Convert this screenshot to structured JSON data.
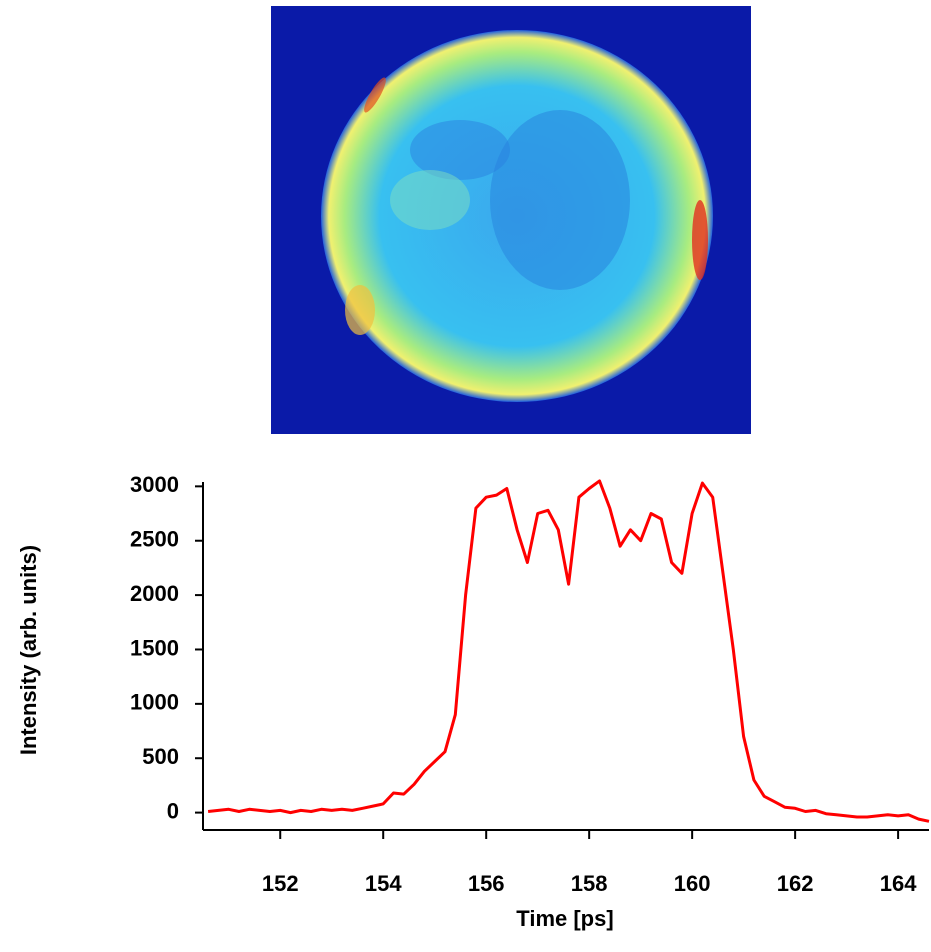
{
  "chart_data": {
    "type": "line",
    "xlabel": "Time [ps]",
    "ylabel": "Intensity (arb. units)",
    "xlim": [
      150.5,
      164.6
    ],
    "ylim": [
      -160,
      3040
    ],
    "xticks": [
      152,
      154,
      156,
      158,
      160,
      162,
      164
    ],
    "yticks": [
      0,
      500,
      1000,
      1500,
      2000,
      2500,
      3000
    ],
    "color": "#ff0000",
    "x": [
      150.6,
      150.8,
      151.0,
      151.2,
      151.4,
      151.6,
      151.8,
      152.0,
      152.2,
      152.4,
      152.6,
      152.8,
      153.0,
      153.2,
      153.4,
      153.6,
      153.8,
      154.0,
      154.2,
      154.4,
      154.6,
      154.8,
      155.0,
      155.2,
      155.4,
      155.6,
      155.8,
      156.0,
      156.2,
      156.4,
      156.6,
      156.8,
      157.0,
      157.2,
      157.4,
      157.6,
      157.8,
      158.0,
      158.2,
      158.4,
      158.6,
      158.8,
      159.0,
      159.2,
      159.4,
      159.6,
      159.8,
      160.0,
      160.2,
      160.4,
      160.6,
      160.8,
      161.0,
      161.2,
      161.4,
      161.6,
      161.8,
      162.0,
      162.2,
      162.4,
      162.6,
      162.8,
      163.0,
      163.2,
      163.4,
      163.6,
      163.8,
      164.0,
      164.2,
      164.4,
      164.6
    ],
    "values": [
      10,
      20,
      30,
      10,
      30,
      20,
      10,
      20,
      0,
      20,
      10,
      30,
      20,
      30,
      20,
      40,
      60,
      80,
      180,
      170,
      260,
      380,
      470,
      560,
      900,
      2000,
      2800,
      2900,
      2920,
      2980,
      2600,
      2300,
      2750,
      2780,
      2600,
      2100,
      2900,
      2980,
      3050,
      2800,
      2450,
      2600,
      2500,
      2750,
      2700,
      2300,
      2200,
      2750,
      3030,
      2900,
      2200,
      1500,
      700,
      300,
      150,
      100,
      50,
      40,
      10,
      20,
      -10,
      -20,
      -30,
      -40,
      -40,
      -30,
      -20,
      -30,
      -20,
      -60,
      -80
    ]
  }
}
